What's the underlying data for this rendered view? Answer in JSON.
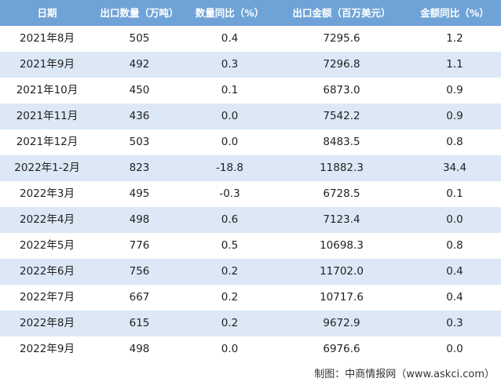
{
  "table": {
    "header": [
      "日期",
      "出口数量（万吨）",
      "数量同比（%）",
      "出口金额（百万美元）",
      "金额同比（%）"
    ],
    "rows": [
      [
        "2021年8月",
        "505",
        "0.4",
        "7295.6",
        "1.2"
      ],
      [
        "2021年9月",
        "492",
        "0.3",
        "7296.8",
        "1.1"
      ],
      [
        "2021年10月",
        "450",
        "0.1",
        "6873.0",
        "0.9"
      ],
      [
        "2021年11月",
        "436",
        "0.0",
        "7542.2",
        "0.9"
      ],
      [
        "2021年12月",
        "503",
        "0.0",
        "8483.5",
        "0.8"
      ],
      [
        "2022年1-2月",
        "823",
        "-18.8",
        "11882.3",
        "34.4"
      ],
      [
        "2022年3月",
        "495",
        "-0.3",
        "6728.5",
        "0.1"
      ],
      [
        "2022年4月",
        "498",
        "0.6",
        "7123.4",
        "0.0"
      ],
      [
        "2022年5月",
        "776",
        "0.5",
        "10698.3",
        "0.8"
      ],
      [
        "2022年6月",
        "756",
        "0.2",
        "11702.0",
        "0.4"
      ],
      [
        "2022年7月",
        "667",
        "0.2",
        "10717.6",
        "0.4"
      ],
      [
        "2022年8月",
        "615",
        "0.2",
        "9672.9",
        "0.3"
      ],
      [
        "2022年9月",
        "498",
        "0.0",
        "6976.6",
        "0.0"
      ]
    ]
  },
  "footer": "制图：中商情报网（www.askci.com）"
}
